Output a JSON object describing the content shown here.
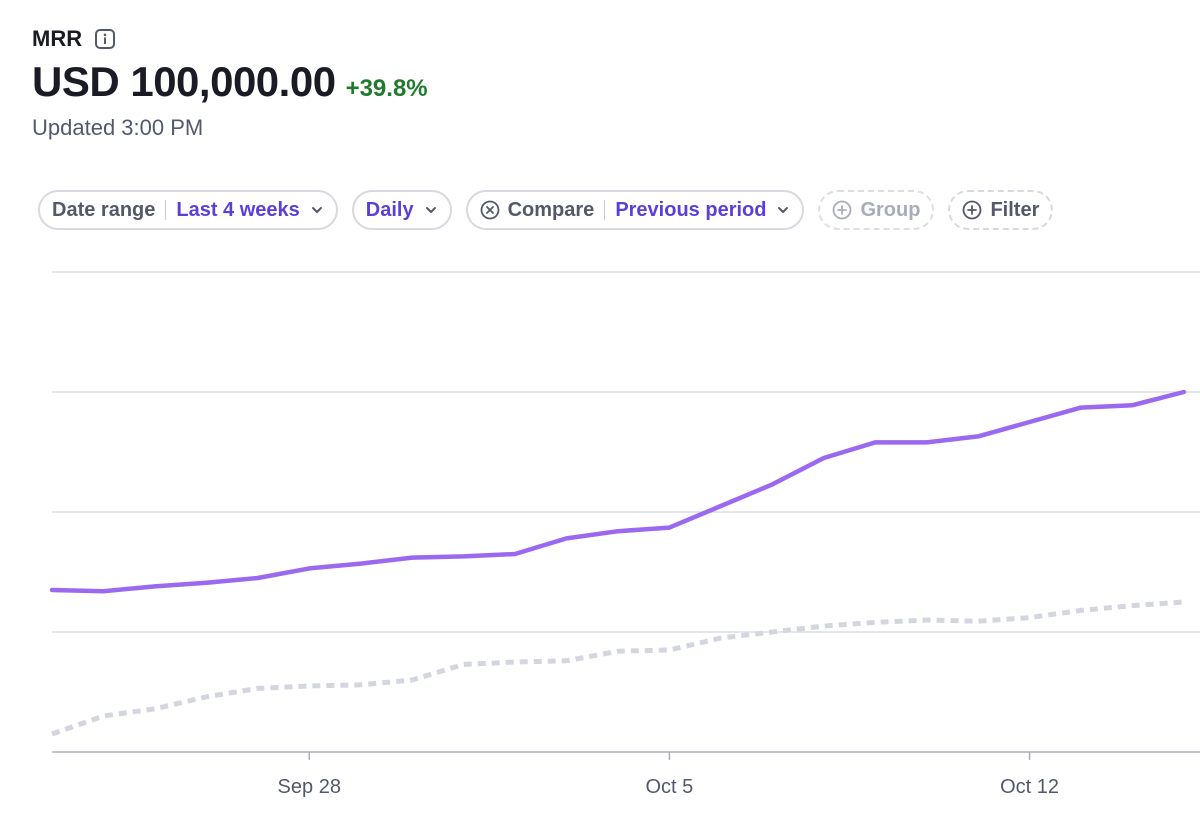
{
  "metric": {
    "label": "MRR",
    "value": "USD 100,000.00",
    "change": "+39.8%",
    "updated": "Updated 3:00 PM"
  },
  "filters": {
    "date_range": {
      "label": "Date range",
      "value": "Last 4 weeks"
    },
    "interval": {
      "value": "Daily"
    },
    "compare": {
      "label": "Compare",
      "value": "Previous period"
    },
    "group": {
      "label": "Group"
    },
    "filter": {
      "label": "Filter"
    }
  },
  "colors": {
    "current_series": "#9b69f0",
    "previous_series": "#d3d6de",
    "accent": "#5b3fd8",
    "positive": "#217a2e"
  },
  "chart_data": {
    "type": "line",
    "title": "",
    "xlabel": "",
    "ylabel": "",
    "ylim": [
      0,
      4
    ],
    "grid": true,
    "x": [
      "Sep 23",
      "Sep 24",
      "Sep 25",
      "Sep 26",
      "Sep 27",
      "Sep 28",
      "Sep 29",
      "Sep 30",
      "Oct 1",
      "Oct 2",
      "Oct 3",
      "Oct 4",
      "Oct 5",
      "Oct 6",
      "Oct 7",
      "Oct 8",
      "Oct 9",
      "Oct 10",
      "Oct 11",
      "Oct 12",
      "Oct 13",
      "Oct 14",
      "Oct 15"
    ],
    "x_ticks": [
      {
        "index": 5,
        "label": "Sep 28"
      },
      {
        "index": 12,
        "label": "Oct 5"
      },
      {
        "index": 19,
        "label": "Oct 12"
      }
    ],
    "series": [
      {
        "name": "Current period",
        "style": "solid",
        "values": [
          1.35,
          1.34,
          1.38,
          1.41,
          1.45,
          1.53,
          1.57,
          1.62,
          1.63,
          1.65,
          1.78,
          1.84,
          1.87,
          2.05,
          2.23,
          2.45,
          2.58,
          2.58,
          2.63,
          2.75,
          2.87,
          2.89,
          3.0
        ]
      },
      {
        "name": "Previous period",
        "style": "dotted",
        "values": [
          0.15,
          0.3,
          0.36,
          0.46,
          0.53,
          0.55,
          0.56,
          0.6,
          0.73,
          0.75,
          0.76,
          0.84,
          0.85,
          0.95,
          1.0,
          1.05,
          1.08,
          1.1,
          1.09,
          1.12,
          1.18,
          1.22,
          1.25
        ]
      }
    ]
  }
}
